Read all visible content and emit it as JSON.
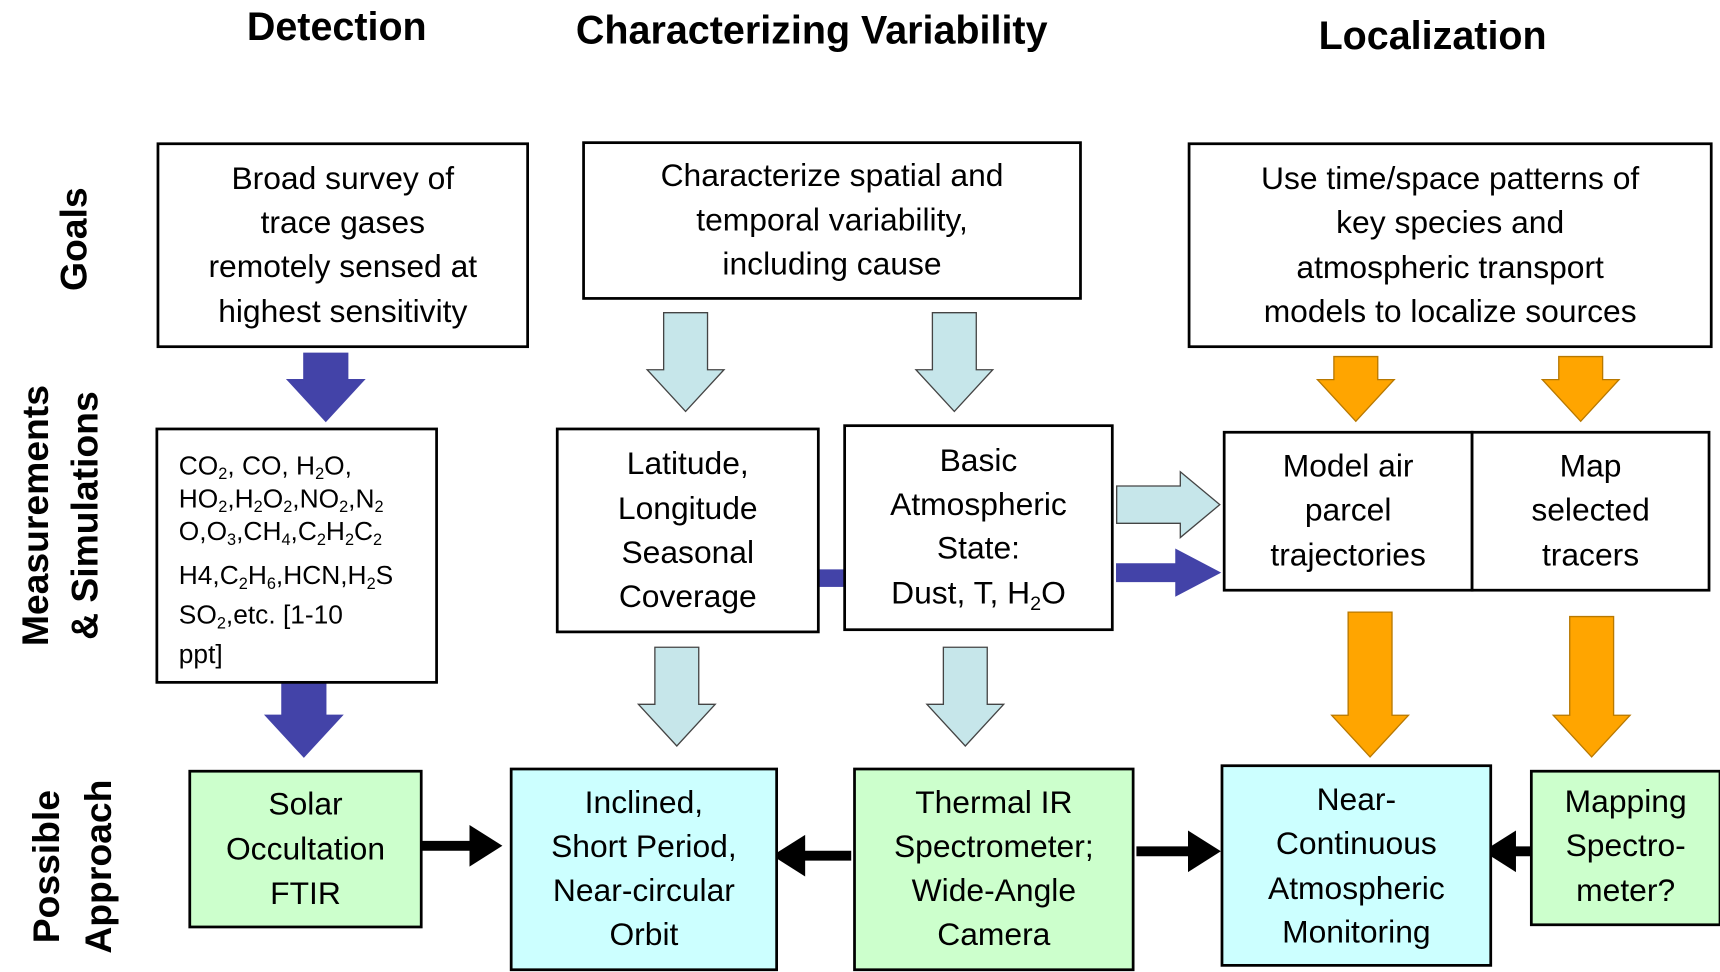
{
  "headers": [
    "Detection",
    "Characterizing Variability",
    "Localization"
  ],
  "row_labels": [
    [
      "Goals"
    ],
    [
      "Measurements",
      "& Simulations"
    ],
    [
      "Possible",
      "Approach"
    ]
  ],
  "boxes": [
    {
      "lines": [
        [
          "Broad survey of"
        ],
        [
          "trace gases"
        ],
        [
          "remotely sensed at"
        ],
        [
          "highest sensitivity"
        ]
      ]
    },
    {
      "lines": [
        [
          "Characterize spatial and"
        ],
        [
          "temporal variability,"
        ],
        [
          "including cause"
        ]
      ]
    },
    {
      "lines": [
        [
          "Use time/space patterns of"
        ],
        [
          "key species and"
        ],
        [
          "atmospheric transport"
        ],
        [
          "models to localize sources"
        ]
      ]
    },
    {
      "lines": [
        [
          "CO",
          {
            "sub": "2"
          },
          ", CO, H",
          {
            "sub": "2"
          },
          "O,"
        ],
        [
          "HO",
          {
            "sub": "2"
          },
          ",H",
          {
            "sub": "2"
          },
          "O",
          {
            "sub": "2"
          },
          ",NO",
          {
            "sub": "2"
          },
          ",N",
          {
            "sub": "2"
          }
        ],
        [
          "O,O",
          {
            "sub": "3"
          },
          ",CH",
          {
            "sub": "4"
          },
          ",C",
          {
            "sub": "2"
          },
          "H",
          {
            "sub": "2"
          },
          "C",
          {
            "sub": "2"
          }
        ],
        [
          "H4,C",
          {
            "sub": "2"
          },
          "H",
          {
            "sub": "6"
          },
          ",HCN,H",
          {
            "sub": "2"
          },
          "S"
        ],
        [
          "SO",
          {
            "sub": "2"
          },
          ",etc.  [1-10"
        ],
        [
          "ppt]"
        ]
      ]
    },
    {
      "lines": [
        [
          "Latitude,"
        ],
        [
          "Longitude"
        ],
        [
          "Seasonal"
        ],
        [
          "Coverage"
        ]
      ]
    },
    {
      "lines": [
        [
          "Basic"
        ],
        [
          "Atmospheric"
        ],
        [
          "State:"
        ],
        [
          "Dust, T, H",
          {
            "sub": "2"
          },
          "O"
        ]
      ]
    },
    {
      "lines": [
        [
          "Model air"
        ],
        [
          "parcel"
        ],
        [
          "trajectories"
        ]
      ]
    },
    {
      "lines": [
        [
          "Map"
        ],
        [
          "selected"
        ],
        [
          "tracers"
        ]
      ]
    },
    {
      "lines": [
        [
          "Solar"
        ],
        [
          "Occultation"
        ],
        [
          "FTIR"
        ]
      ]
    },
    {
      "lines": [
        [
          "Inclined,"
        ],
        [
          "Short Period,"
        ],
        [
          "Near-circular"
        ],
        [
          "Orbit"
        ]
      ]
    },
    {
      "lines": [
        [
          "Thermal IR"
        ],
        [
          "Spectrometer;"
        ],
        [
          "Wide-Angle"
        ],
        [
          "Camera"
        ]
      ]
    },
    {
      "lines": [
        [
          "Near-"
        ],
        [
          "Continuous"
        ],
        [
          "Atmospheric"
        ],
        [
          "Monitoring"
        ]
      ]
    },
    {
      "lines": [
        [
          "Mapping"
        ],
        [
          "Spectro-"
        ],
        [
          "meter?"
        ]
      ]
    }
  ]
}
